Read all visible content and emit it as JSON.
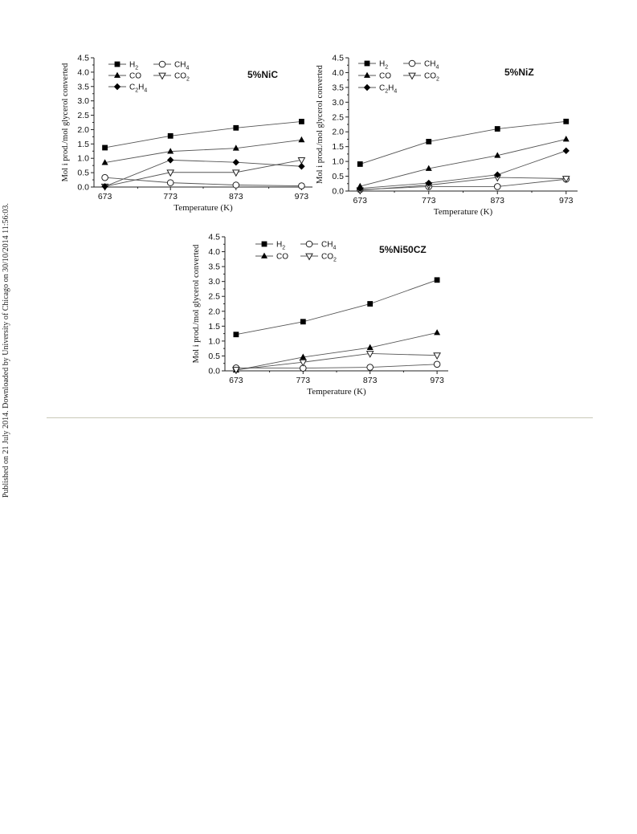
{
  "side_note": "Published on 21 July 2014. Downloaded by University of Chicago on 30/10/2014 11:56:03.",
  "chart_data": [
    {
      "type": "line",
      "title": "5%NiC",
      "xlabel": "Temperature (K)",
      "ylabel": "Mol i prod./mol glycerol converted",
      "x": [
        673,
        773,
        873,
        973
      ],
      "ylim": [
        0,
        4.5
      ],
      "yticks": [
        "0.0",
        "0.5",
        "1.0",
        "1.5",
        "2.0",
        "2.5",
        "3.0",
        "3.5",
        "4.0",
        "4.5"
      ],
      "legend": [
        [
          "H",
          "2"
        ],
        [
          "CH",
          "4"
        ],
        [
          "CO",
          ""
        ],
        [
          "CO",
          "2"
        ],
        [
          "C",
          "2",
          "H",
          "4"
        ]
      ],
      "series": [
        {
          "name": "H2",
          "marker": "square",
          "values": [
            1.37,
            1.78,
            2.06,
            2.28
          ]
        },
        {
          "name": "CH4",
          "marker": "circle-open",
          "values": [
            0.33,
            0.15,
            0.07,
            0.04
          ]
        },
        {
          "name": "CO",
          "marker": "triangle",
          "values": [
            0.85,
            1.24,
            1.35,
            1.64
          ]
        },
        {
          "name": "CO2",
          "marker": "triangle-down-open",
          "values": [
            0.02,
            0.51,
            0.51,
            0.94
          ]
        },
        {
          "name": "C2H4",
          "marker": "diamond",
          "values": [
            0.02,
            0.94,
            0.86,
            0.72
          ]
        }
      ]
    },
    {
      "type": "line",
      "title": "5%NiZ",
      "xlabel": "Temperature (K)",
      "ylabel": "Mol i prod./mol glycerol converted",
      "x": [
        673,
        773,
        873,
        973
      ],
      "ylim": [
        0,
        4.5
      ],
      "yticks": [
        "0.0",
        "0.5",
        "1.0",
        "1.5",
        "2.0",
        "2.5",
        "3.0",
        "3.5",
        "4.0",
        "4.5"
      ],
      "legend": [
        [
          "H",
          "2"
        ],
        [
          "CH",
          "4"
        ],
        [
          "CO",
          ""
        ],
        [
          "CO",
          "2"
        ],
        [
          "C",
          "2",
          "H",
          "4"
        ]
      ],
      "series": [
        {
          "name": "H2",
          "marker": "square",
          "values": [
            0.91,
            1.67,
            2.1,
            2.35
          ]
        },
        {
          "name": "CH4",
          "marker": "circle-open",
          "values": [
            0.05,
            0.15,
            0.15,
            0.4
          ]
        },
        {
          "name": "CO",
          "marker": "triangle",
          "values": [
            0.16,
            0.76,
            1.2,
            1.75
          ]
        },
        {
          "name": "CO2",
          "marker": "triangle-down-open",
          "values": [
            0.03,
            0.2,
            0.46,
            0.42
          ]
        },
        {
          "name": "C2H4",
          "marker": "diamond",
          "values": [
            0.09,
            0.27,
            0.55,
            1.36
          ]
        }
      ]
    },
    {
      "type": "line",
      "title": "5%Ni50CZ",
      "xlabel": "Temperature (K)",
      "ylabel": "Mol i prod./mol glycerol converted",
      "x": [
        673,
        773,
        873,
        973
      ],
      "ylim": [
        0,
        4.5
      ],
      "yticks": [
        "0.0",
        "0.5",
        "1.0",
        "1.5",
        "2.0",
        "2.5",
        "3.0",
        "3.5",
        "4.0",
        "4.5"
      ],
      "legend": [
        [
          "H",
          "2"
        ],
        [
          "CH",
          "4"
        ],
        [
          "CO",
          ""
        ],
        [
          "CO",
          "2"
        ]
      ],
      "series": [
        {
          "name": "H2",
          "marker": "square",
          "values": [
            1.22,
            1.65,
            2.25,
            3.05
          ]
        },
        {
          "name": "CH4",
          "marker": "circle-open",
          "values": [
            0.1,
            0.09,
            0.12,
            0.22
          ]
        },
        {
          "name": "CO",
          "marker": "triangle",
          "values": [
            0.02,
            0.46,
            0.78,
            1.28
          ]
        },
        {
          "name": "CO2",
          "marker": "triangle-down-open",
          "values": [
            0.04,
            0.29,
            0.58,
            0.52
          ]
        }
      ]
    }
  ]
}
